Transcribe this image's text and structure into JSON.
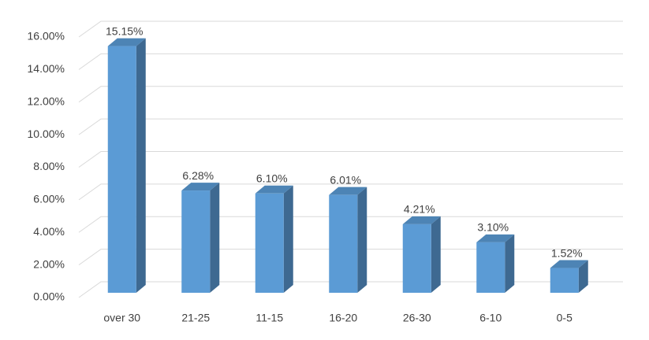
{
  "chart_data": {
    "type": "bar3d",
    "categories": [
      "over 30",
      "21-25",
      "11-15",
      "16-20",
      "26-30",
      "6-10",
      "0-5"
    ],
    "values": [
      15.15,
      6.28,
      6.1,
      6.01,
      4.21,
      3.1,
      1.52
    ],
    "value_labels": [
      "15.15%",
      "6.28%",
      "6.10%",
      "6.01%",
      "4.21%",
      "3.10%",
      "1.52%"
    ],
    "color": "#5b9bd5",
    "ylim": [
      0,
      16
    ],
    "yticks": [
      {
        "value": 0,
        "label": "0.00%"
      },
      {
        "value": 2,
        "label": "2.00%"
      },
      {
        "value": 4,
        "label": "4.00%"
      },
      {
        "value": 6,
        "label": "6.00%"
      },
      {
        "value": 8,
        "label": "8.00%"
      },
      {
        "value": 10,
        "label": "10.00%"
      },
      {
        "value": 12,
        "label": "12.00%"
      },
      {
        "value": 14,
        "label": "14.00%"
      },
      {
        "value": 16,
        "label": "16.00%"
      }
    ],
    "grid": true
  }
}
